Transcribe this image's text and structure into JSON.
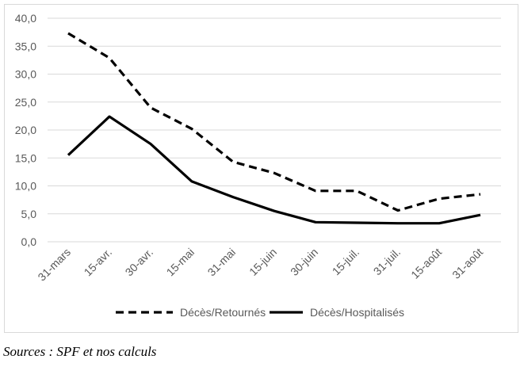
{
  "chart_data": {
    "type": "line",
    "title": "",
    "xlabel": "",
    "ylabel": "",
    "categories": [
      "31-mars",
      "15-avr.",
      "30-avr.",
      "15-mai",
      "31-mai",
      "15-juin",
      "30-juin",
      "15-juil.",
      "31-juil.",
      "15-août",
      "31-août"
    ],
    "ylim": [
      0,
      40
    ],
    "yticks": [
      "0,0",
      "5,0",
      "10,0",
      "15,0",
      "20,0",
      "25,0",
      "30,0",
      "35,0",
      "40,0"
    ],
    "grid": true,
    "legend_position": "bottom",
    "series": [
      {
        "name": "Décès/Retournés",
        "style": "dashed",
        "color": "#000000",
        "values": [
          37.3,
          32.9,
          24.0,
          20.2,
          14.3,
          12.3,
          9.1,
          9.1,
          5.6,
          7.7,
          8.5
        ]
      },
      {
        "name": "Décès/Hospitalisés",
        "style": "solid",
        "color": "#000000",
        "values": [
          15.5,
          22.4,
          17.5,
          10.8,
          8.0,
          5.5,
          3.5,
          3.4,
          3.3,
          3.3,
          4.8
        ]
      }
    ]
  },
  "source_note": "Sources : SPF et nos calculs",
  "colors": {
    "gridline": "#d9d9d9",
    "tick_text": "#595959",
    "frame": "#d9d9d9"
  }
}
